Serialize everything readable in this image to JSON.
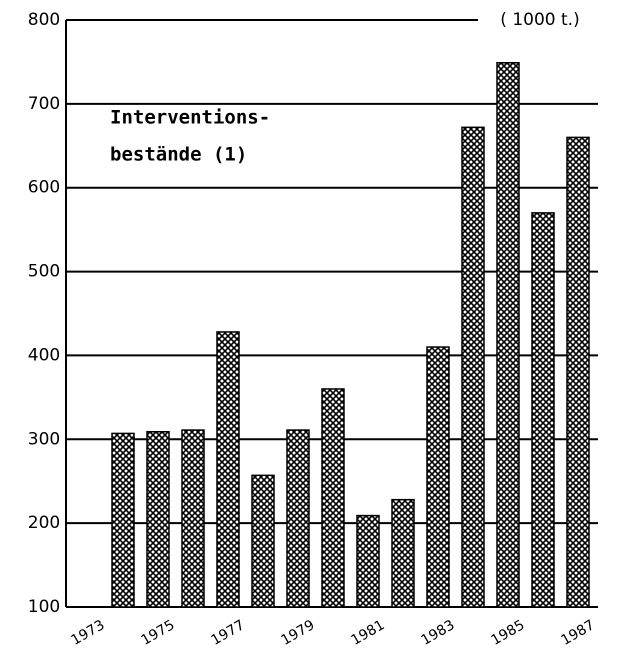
{
  "chart_data": {
    "type": "bar",
    "unit_label": "( 1000 t.)",
    "annotation_lines": [
      "Interventions-",
      "bestände (1)"
    ],
    "categories": [
      "1973",
      null,
      "1975",
      null,
      "1977",
      null,
      "1979",
      null,
      "1981",
      null,
      "1983",
      null,
      "1985",
      null,
      "1987"
    ],
    "values": [
      null,
      307,
      309,
      311,
      428,
      257,
      311,
      360,
      209,
      228,
      410,
      672,
      749,
      570,
      660
    ],
    "ylim": [
      100,
      800
    ],
    "yticks": [
      100,
      200,
      300,
      400,
      500,
      600,
      700,
      800
    ],
    "grid": true,
    "color": "#000000"
  }
}
